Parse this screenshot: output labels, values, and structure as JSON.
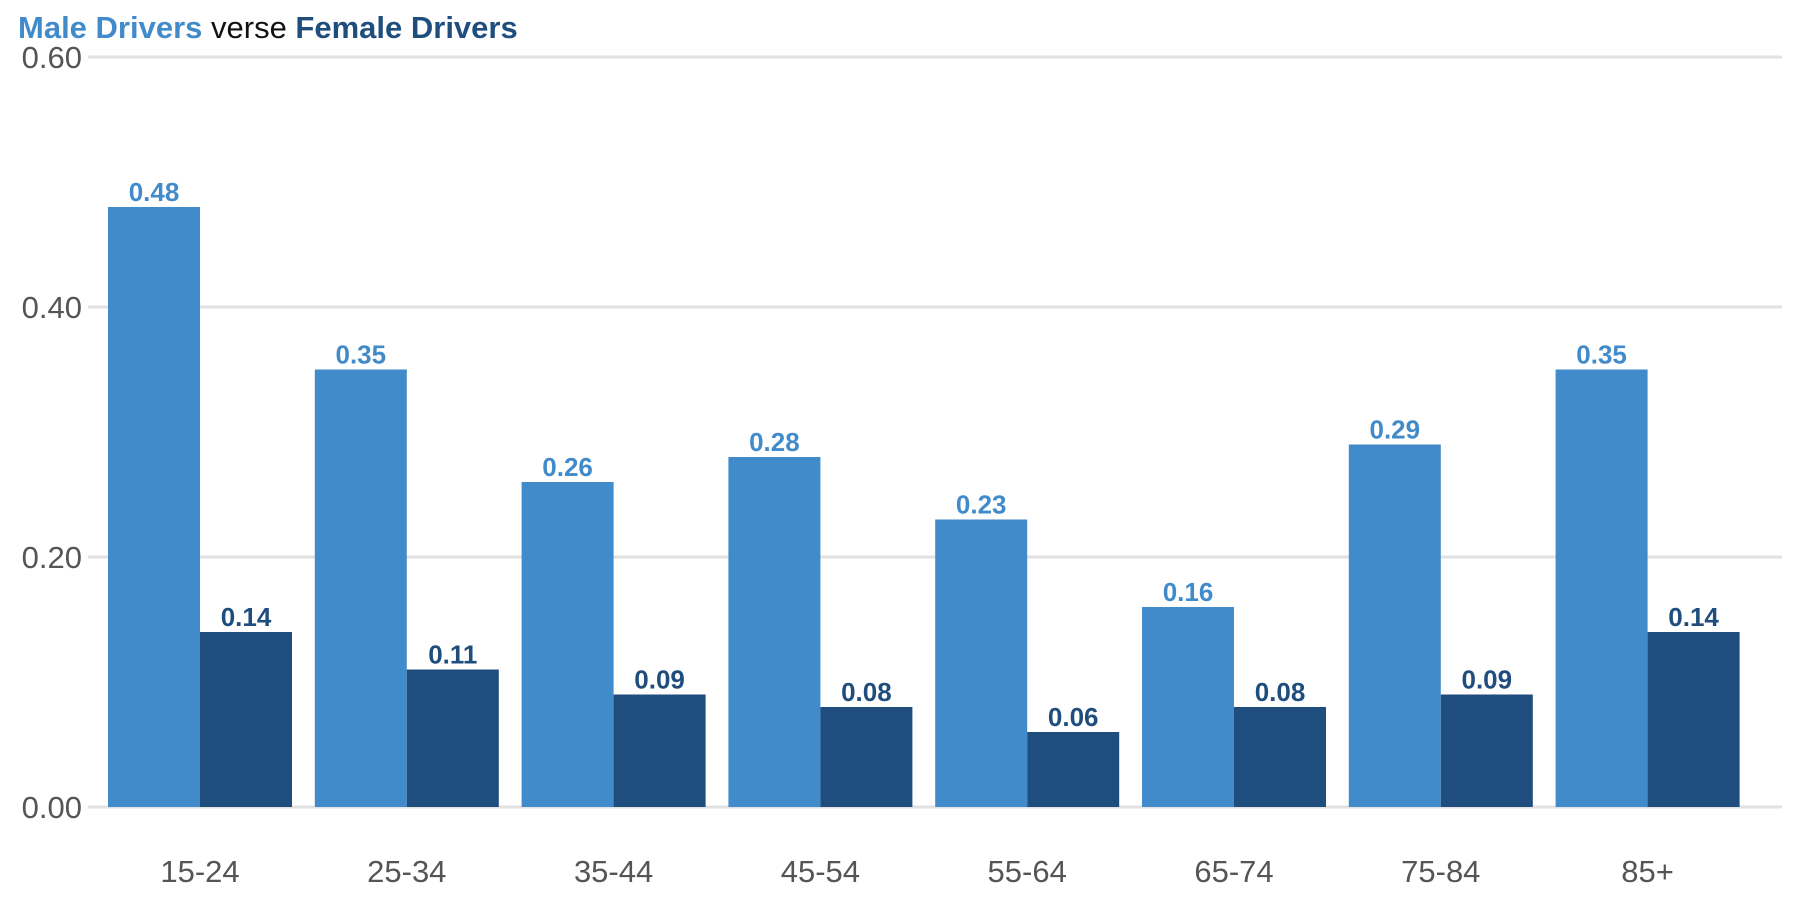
{
  "title": {
    "part1": "Male Drivers",
    "part2": " verse ",
    "part3": "Female Drivers"
  },
  "colors": {
    "male": "#428bca",
    "female": "#1f4e7e",
    "grid": "#e2e2e2",
    "axis_text": "#555555"
  },
  "chart_data": {
    "type": "bar",
    "categories": [
      "15-24",
      "25-34",
      "35-44",
      "45-54",
      "55-64",
      "65-74",
      "75-84",
      "85+"
    ],
    "series": [
      {
        "name": "Male Drivers",
        "values": [
          0.48,
          0.35,
          0.26,
          0.28,
          0.23,
          0.16,
          0.29,
          0.35
        ]
      },
      {
        "name": "Female Drivers",
        "values": [
          0.14,
          0.11,
          0.09,
          0.08,
          0.06,
          0.08,
          0.09,
          0.14
        ]
      }
    ],
    "title": "Male Drivers verse Female Drivers",
    "xlabel": "",
    "ylabel": "",
    "ylim": [
      0,
      0.6
    ],
    "yticks": [
      "0.00",
      "0.20",
      "0.40",
      "0.60"
    ],
    "grid": true,
    "legend": "none"
  }
}
